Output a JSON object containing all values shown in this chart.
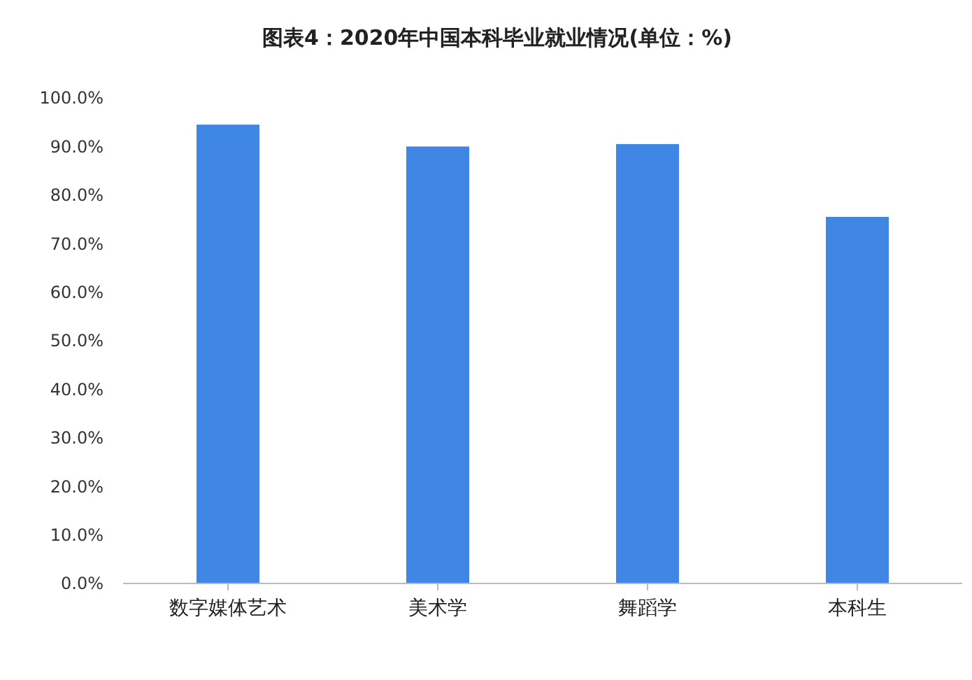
{
  "chart_data": {
    "type": "bar",
    "title": "图表4：2020年中国本科毕业就业情况(单位：%)",
    "categories": [
      "数字媒体艺术",
      "美术学",
      "舞蹈学",
      "本科生"
    ],
    "values": [
      94.5,
      90.0,
      90.5,
      75.5
    ],
    "color": "#4086e4",
    "ylim": [
      0,
      100
    ],
    "yticks": [
      {
        "value": 0,
        "label": "0.0%"
      },
      {
        "value": 10,
        "label": "10.0%"
      },
      {
        "value": 20,
        "label": "20.0%"
      },
      {
        "value": 30,
        "label": "30.0%"
      },
      {
        "value": 40,
        "label": "40.0%"
      },
      {
        "value": 50,
        "label": "50.0%"
      },
      {
        "value": 60,
        "label": "60.0%"
      },
      {
        "value": 70,
        "label": "70.0%"
      },
      {
        "value": 80,
        "label": "80.0%"
      },
      {
        "value": 90,
        "label": "90.0%"
      },
      {
        "value": 100,
        "label": "100.0%"
      }
    ]
  }
}
